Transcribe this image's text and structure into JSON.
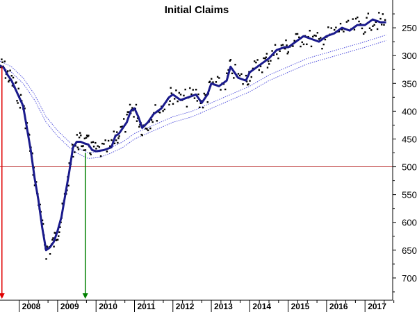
{
  "chart_data": {
    "type": "scatter",
    "title": "Initial Claims",
    "xlabel": "",
    "ylabel": "",
    "y_axis": {
      "position": "right",
      "inverted": true,
      "ylim": [
        200,
        740
      ],
      "ticks": [
        250,
        300,
        350,
        400,
        450,
        500,
        550,
        600,
        650,
        700
      ]
    },
    "x_axis": {
      "xlim": [
        2007.5,
        2017.72
      ],
      "year_labels": [
        "2008",
        "2009",
        "2010",
        "2011",
        "2012",
        "2013",
        "2014",
        "2015",
        "2016",
        "2017"
      ]
    },
    "reference_line": {
      "y": 500,
      "color": "#c04040"
    },
    "arrows": [
      {
        "x": 2007.55,
        "from_y": 320,
        "to_y": 740,
        "color": "#e00000"
      },
      {
        "x": 2009.72,
        "from_y": 475,
        "to_y": 740,
        "color": "#008000"
      }
    ],
    "series": [
      {
        "style": "moving-average",
        "color": "#1a1a8c",
        "x": [
          2007.5,
          2007.6,
          2007.7,
          2007.8,
          2007.9,
          2008.0,
          2008.1,
          2008.2,
          2008.3,
          2008.4,
          2008.5,
          2008.6,
          2008.7,
          2008.8,
          2008.9,
          2009.0,
          2009.1,
          2009.2,
          2009.3,
          2009.4,
          2009.5,
          2009.6,
          2009.7,
          2009.8,
          2009.9,
          2010.0,
          2010.2,
          2010.4,
          2010.5,
          2010.6,
          2010.8,
          2010.9,
          2011.0,
          2011.1,
          2011.2,
          2011.35,
          2011.5,
          2011.7,
          2011.9,
          2012.0,
          2012.2,
          2012.4,
          2012.6,
          2012.75,
          2012.9,
          2013.0,
          2013.2,
          2013.4,
          2013.5,
          2013.7,
          2013.9,
          2014.0,
          2014.2,
          2014.4,
          2014.5,
          2014.7,
          2014.9,
          2015.0,
          2015.2,
          2015.4,
          2015.6,
          2015.8,
          2016.0,
          2016.2,
          2016.4,
          2016.6,
          2016.8,
          2017.0,
          2017.2,
          2017.4,
          2017.55
        ],
        "values": [
          318,
          322,
          335,
          345,
          360,
          375,
          390,
          430,
          470,
          520,
          560,
          610,
          650,
          645,
          635,
          615,
          590,
          550,
          510,
          465,
          455,
          455,
          458,
          460,
          470,
          472,
          470,
          465,
          445,
          440,
          420,
          400,
          395,
          410,
          430,
          420,
          405,
          395,
          375,
          370,
          380,
          375,
          370,
          385,
          370,
          350,
          355,
          345,
          320,
          340,
          345,
          330,
          320,
          310,
          305,
          290,
          285,
          285,
          275,
          265,
          270,
          275,
          265,
          260,
          250,
          255,
          245,
          245,
          235,
          240,
          240
        ]
      },
      {
        "style": "envelope",
        "color": "#5555dd",
        "x": [
          2007.5,
          2007.8,
          2008.1,
          2008.4,
          2008.7,
          2009.0,
          2009.3,
          2009.55,
          2009.8,
          2010.1,
          2010.4,
          2010.7,
          2011.0,
          2011.5,
          2012.0,
          2012.5,
          2013.0,
          2013.5,
          2014.0,
          2014.5,
          2015.0,
          2015.5,
          2016.0,
          2016.5,
          2017.0,
          2017.55
        ],
        "values": [
          315,
          325,
          345,
          375,
          415,
          440,
          460,
          472,
          480,
          478,
          470,
          460,
          445,
          430,
          415,
          405,
          390,
          375,
          360,
          340,
          325,
          310,
          300,
          290,
          280,
          268
        ]
      }
    ]
  }
}
